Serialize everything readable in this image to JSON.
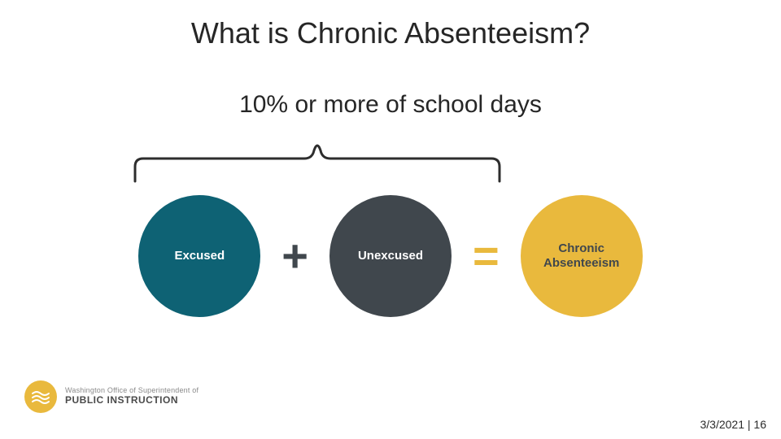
{
  "title": {
    "text": "What is Chronic Absenteeism?",
    "fontsize": 36,
    "color": "#262626"
  },
  "subtitle": {
    "text": "10% or more of school days",
    "fontsize": 30,
    "color": "#262626"
  },
  "bracket": {
    "color": "#2d2d2d",
    "stroke_width": 3
  },
  "circles": {
    "diameter": 150,
    "excused": {
      "label": "Excused",
      "bg": "#0e6274",
      "fg": "#ffffff",
      "fontsize": 15
    },
    "unexcused": {
      "label": "Unexcused",
      "bg": "#40474d",
      "fg": "#ffffff",
      "fontsize": 15
    },
    "chronic": {
      "label": "Chronic\nAbsenteeism",
      "bg": "#e9b93d",
      "fg": "#40474d",
      "fontsize": 15
    }
  },
  "operators": {
    "plus": {
      "glyph": "+",
      "color": "#40474d",
      "fontsize": 56
    },
    "equals": {
      "glyph": "=",
      "color": "#e9b93d",
      "fontsize": 56
    }
  },
  "logo": {
    "circle_color": "#e9b93d",
    "icon_color": "#ffffff",
    "line1": "Washington Office of Superintendent of",
    "line2": "PUBLIC INSTRUCTION"
  },
  "footer": {
    "date": "3/3/2021",
    "sep": " | ",
    "page": "16"
  }
}
